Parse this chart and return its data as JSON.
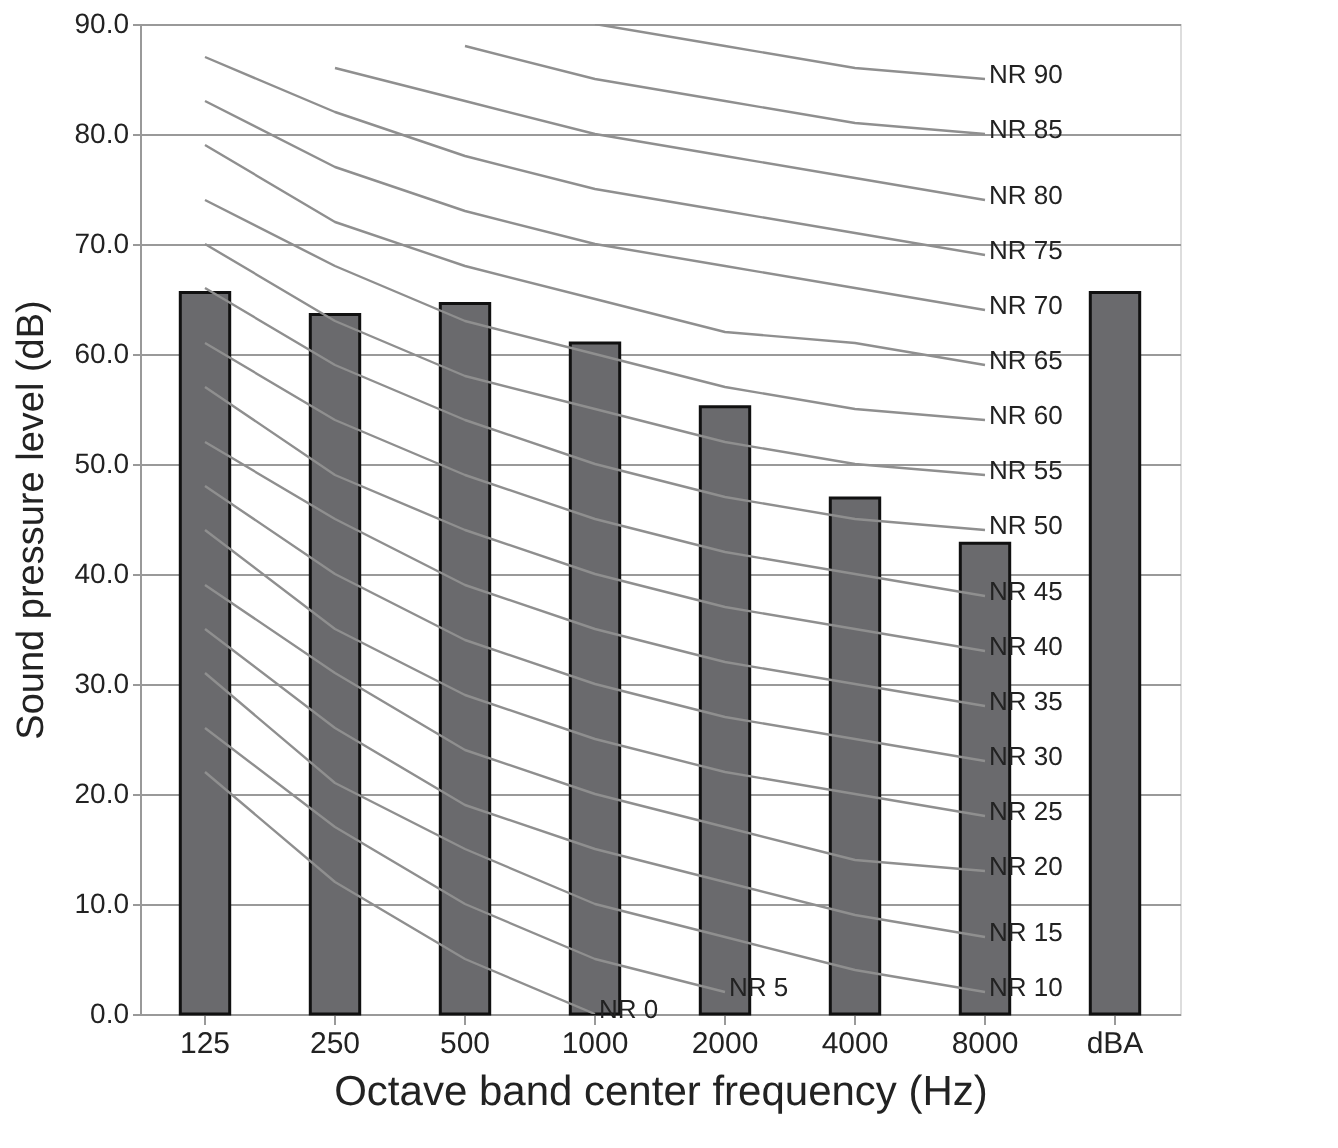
{
  "chart_data": {
    "type": "bar",
    "xlabel": "Octave band center frequency (Hz)",
    "ylabel": "Sound pressure level (dB)",
    "categories": [
      "125",
      "250",
      "500",
      "1000",
      "2000",
      "4000",
      "8000",
      "dBA"
    ],
    "ylim": [
      0,
      90
    ],
    "yticks": [
      {
        "value": 0,
        "label": "0.0"
      },
      {
        "value": 10,
        "label": "10.0"
      },
      {
        "value": 20,
        "label": "20.0"
      },
      {
        "value": 30,
        "label": "30.0"
      },
      {
        "value": 40,
        "label": "40.0"
      },
      {
        "value": 50,
        "label": "50.0"
      },
      {
        "value": 60,
        "label": "60.0"
      },
      {
        "value": 70,
        "label": "70.0"
      },
      {
        "value": 80,
        "label": "80.0"
      },
      {
        "value": 90,
        "label": "90.0"
      }
    ],
    "grid": "y",
    "series": [
      {
        "color": "#6a6a6d",
        "values": [
          65.6,
          63.6,
          64.6,
          61.0,
          55.2,
          46.9,
          42.8,
          65.6
        ]
      },
      {
        "type": "line",
        "name": "NR 0",
        "color": "#8f8f8f",
        "values": [
          22,
          12,
          5,
          0,
          null,
          null,
          null,
          null
        ]
      },
      {
        "type": "line",
        "name": "NR 5",
        "color": "#8f8f8f",
        "values": [
          26,
          17,
          10,
          5,
          2,
          null,
          null,
          null
        ]
      },
      {
        "type": "line",
        "name": "NR 10",
        "color": "#8f8f8f",
        "values": [
          31,
          21,
          15,
          10,
          7,
          4,
          2,
          null
        ]
      },
      {
        "type": "line",
        "name": "NR 15",
        "color": "#8f8f8f",
        "values": [
          35,
          26,
          19,
          15,
          12,
          9,
          7,
          null
        ]
      },
      {
        "type": "line",
        "name": "NR 20",
        "color": "#8f8f8f",
        "values": [
          39,
          31,
          24,
          20,
          17,
          14,
          13,
          null
        ]
      },
      {
        "type": "line",
        "name": "NR 25",
        "color": "#8f8f8f",
        "values": [
          44,
          35,
          29,
          25,
          22,
          20,
          18,
          null
        ]
      },
      {
        "type": "line",
        "name": "NR 30",
        "color": "#8f8f8f",
        "values": [
          48,
          40,
          34,
          30,
          27,
          25,
          23,
          null
        ]
      },
      {
        "type": "line",
        "name": "NR 35",
        "color": "#8f8f8f",
        "values": [
          52,
          45,
          39,
          35,
          32,
          30,
          28,
          null
        ]
      },
      {
        "type": "line",
        "name": "NR 40",
        "color": "#8f8f8f",
        "values": [
          57,
          49,
          44,
          40,
          37,
          35,
          33,
          null
        ]
      },
      {
        "type": "line",
        "name": "NR 45",
        "color": "#8f8f8f",
        "values": [
          61,
          54,
          49,
          45,
          42,
          40,
          38,
          null
        ]
      },
      {
        "type": "line",
        "name": "NR 50",
        "color": "#8f8f8f",
        "values": [
          66,
          59,
          54,
          50,
          47,
          45,
          44,
          null
        ]
      },
      {
        "type": "line",
        "name": "NR 55",
        "color": "#8f8f8f",
        "values": [
          70,
          63,
          58,
          55,
          52,
          50,
          49,
          null
        ]
      },
      {
        "type": "line",
        "name": "NR 60",
        "color": "#8f8f8f",
        "values": [
          74,
          68,
          63,
          60,
          57,
          55,
          54,
          null
        ]
      },
      {
        "type": "line",
        "name": "NR 65",
        "color": "#8f8f8f",
        "values": [
          79,
          72,
          68,
          65,
          62,
          61,
          59,
          null
        ]
      },
      {
        "type": "line",
        "name": "NR 70",
        "color": "#8f8f8f",
        "values": [
          83,
          77,
          73,
          70,
          68,
          66,
          64,
          null
        ]
      },
      {
        "type": "line",
        "name": "NR 75",
        "color": "#8f8f8f",
        "values": [
          87,
          82,
          78,
          75,
          73,
          71,
          69,
          null
        ]
      },
      {
        "type": "line",
        "name": "NR 80",
        "color": "#8f8f8f",
        "values": [
          null,
          86,
          83,
          80,
          78,
          76,
          74,
          null
        ]
      },
      {
        "type": "line",
        "name": "NR 85",
        "color": "#8f8f8f",
        "values": [
          null,
          null,
          88,
          85,
          83,
          81,
          80,
          null
        ]
      },
      {
        "type": "line",
        "name": "NR 90",
        "color": "#8f8f8f",
        "values": [
          null,
          null,
          null,
          90,
          88,
          86,
          85,
          null
        ]
      }
    ]
  }
}
